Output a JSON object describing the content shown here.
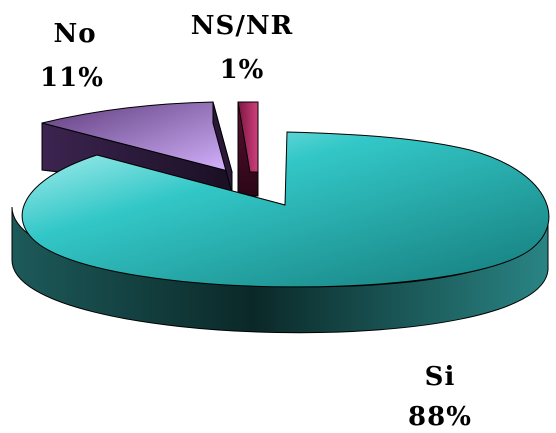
{
  "chart_data": {
    "type": "pie",
    "style": "3d-exploded",
    "title": "",
    "legend": "none",
    "slices": [
      {
        "name": "Si",
        "value": 88,
        "label": "88%",
        "color": "#33c7c7"
      },
      {
        "name": "No",
        "value": 11,
        "label": "11%",
        "color": "#c79cf2"
      },
      {
        "name": "NS/NR",
        "value": 1,
        "label": "1%",
        "color": "#a8245f"
      }
    ]
  }
}
